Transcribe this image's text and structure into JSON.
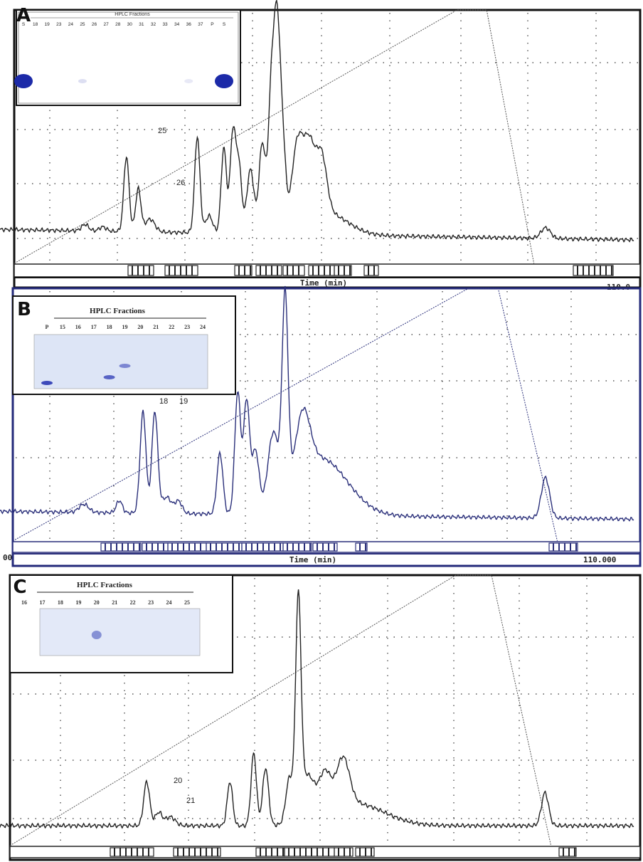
{
  "chart_data": [
    {
      "panel": "A",
      "type": "line",
      "xlabel": "Time (min)",
      "x_end_label": "110.0",
      "x_range": [
        0,
        110
      ],
      "grid": "dotted",
      "inset": {
        "title": "HPLC Fractions",
        "lanes": [
          "S",
          "18",
          "19",
          "23",
          "24",
          "25",
          "26",
          "27",
          "28",
          "30",
          "31",
          "32",
          "33",
          "34",
          "36",
          "37",
          "P",
          "S"
        ],
        "bands": [
          {
            "lane": 0,
            "intensity": 1.0
          },
          {
            "lane": 5,
            "intensity": 0.15
          },
          {
            "lane": 14,
            "intensity": 0.1
          },
          {
            "lane": 17,
            "intensity": 1.0
          }
        ]
      },
      "annotations": [
        "25",
        "26"
      ],
      "trace": {
        "color": "#222222",
        "baseline_left": 0.1,
        "baseline_right": 0.05,
        "peaks": [
          [
            17,
            0.03,
            0.6
          ],
          [
            20,
            0.02,
            0.6
          ],
          [
            24,
            0.35,
            0.45
          ],
          [
            26,
            0.2,
            0.45
          ],
          [
            28,
            0.06,
            0.8
          ],
          [
            36,
            0.45,
            0.45
          ],
          [
            38,
            0.08,
            0.6
          ],
          [
            40.5,
            0.4,
            0.45
          ],
          [
            42,
            0.45,
            0.45
          ],
          [
            43,
            0.33,
            0.5
          ],
          [
            45,
            0.3,
            0.6
          ],
          [
            47,
            0.42,
            0.55
          ],
          [
            48.5,
            0.6,
            0.5
          ],
          [
            49.5,
            0.95,
            0.55
          ],
          [
            50.5,
            0.35,
            0.5
          ],
          [
            53,
            0.4,
            1.0
          ],
          [
            55,
            0.32,
            0.9
          ],
          [
            57,
            0.28,
            0.9
          ],
          [
            58,
            0.1,
            3.5
          ],
          [
            95,
            0.05,
            0.8
          ]
        ]
      },
      "gradient": {
        "color": "#555555",
        "points": [
          [
            5,
            0.0
          ],
          [
            80,
            1.0
          ],
          [
            85,
            1.0
          ],
          [
            93,
            0.0
          ]
        ]
      },
      "fraction_bar_color": "#222222"
    },
    {
      "panel": "B",
      "type": "line",
      "xlabel": "Time (min)",
      "x_start_label": "00",
      "x_end_label": "110.000",
      "x_range": [
        0,
        110
      ],
      "grid": "dotted",
      "inset": {
        "title": "HPLC Fractions",
        "lanes": [
          "P",
          "15",
          "16",
          "17",
          "18",
          "19",
          "20",
          "21",
          "22",
          "23",
          "24"
        ],
        "bands": [
          {
            "lane": 0,
            "intensity": 0.9
          },
          {
            "lane": 4,
            "intensity": 0.75
          },
          {
            "lane": 5,
            "intensity": 0.55
          }
        ]
      },
      "annotations": [
        "18",
        "19"
      ],
      "trace": {
        "color": "#2a2f7a",
        "baseline_left": 0.08,
        "baseline_right": 0.04,
        "peaks": [
          [
            17,
            0.04,
            0.8
          ],
          [
            23,
            0.06,
            0.5
          ],
          [
            27,
            0.5,
            0.5
          ],
          [
            29,
            0.5,
            0.5
          ],
          [
            31,
            0.08,
            0.8
          ],
          [
            33,
            0.06,
            0.6
          ],
          [
            40,
            0.3,
            0.5
          ],
          [
            43,
            0.6,
            0.5
          ],
          [
            44.5,
            0.55,
            0.5
          ],
          [
            46,
            0.3,
            0.6
          ],
          [
            49,
            0.35,
            0.9
          ],
          [
            51,
            0.96,
            0.5
          ],
          [
            54,
            0.3,
            1.2
          ],
          [
            57,
            0.28,
            4.5
          ],
          [
            95,
            0.2,
            0.7
          ]
        ]
      },
      "gradient": {
        "color": "#2a2f7a",
        "points": [
          [
            5,
            0.0
          ],
          [
            82,
            1.0
          ],
          [
            87,
            1.0
          ],
          [
            97,
            0.0
          ]
        ]
      },
      "fraction_bar_color": "#2a2f7a"
    },
    {
      "panel": "C",
      "type": "line",
      "x_range": [
        0,
        110
      ],
      "grid": "dotted",
      "inset": {
        "title": "HPLC Fractions",
        "lanes": [
          "16",
          "17",
          "18",
          "19",
          "20",
          "21",
          "22",
          "23",
          "24",
          "25"
        ],
        "bands": [
          {
            "lane": 4,
            "intensity": 0.55
          }
        ]
      },
      "annotations": [
        "20",
        "21"
      ],
      "trace": {
        "color": "#222222",
        "baseline_left": 0.05,
        "baseline_right": 0.05,
        "peaks": [
          [
            28,
            0.2,
            0.5
          ],
          [
            30,
            0.06,
            0.6
          ],
          [
            32,
            0.04,
            0.8
          ],
          [
            42,
            0.2,
            0.45
          ],
          [
            46,
            0.33,
            0.45
          ],
          [
            48,
            0.26,
            0.5
          ],
          [
            52,
            0.2,
            0.6
          ],
          [
            53.5,
            0.95,
            0.45
          ],
          [
            55,
            0.2,
            1.2
          ],
          [
            58,
            0.18,
            1.0
          ],
          [
            61,
            0.22,
            1.1
          ],
          [
            63,
            0.1,
            5
          ],
          [
            95,
            0.15,
            0.6
          ]
        ]
      },
      "gradient": {
        "color": "#555555",
        "points": [
          [
            5,
            0.0
          ],
          [
            80,
            1.0
          ],
          [
            86,
            1.0
          ],
          [
            96,
            0.0
          ]
        ]
      },
      "fraction_bar_color": "#222222"
    }
  ],
  "panels": [
    {
      "letter": "A",
      "axis_label": "Time (min)",
      "x_end": "110.0"
    },
    {
      "letter": "B",
      "axis_label": "Time (min)",
      "x_start": "00",
      "x_end": "110.000"
    },
    {
      "letter": "C"
    }
  ]
}
